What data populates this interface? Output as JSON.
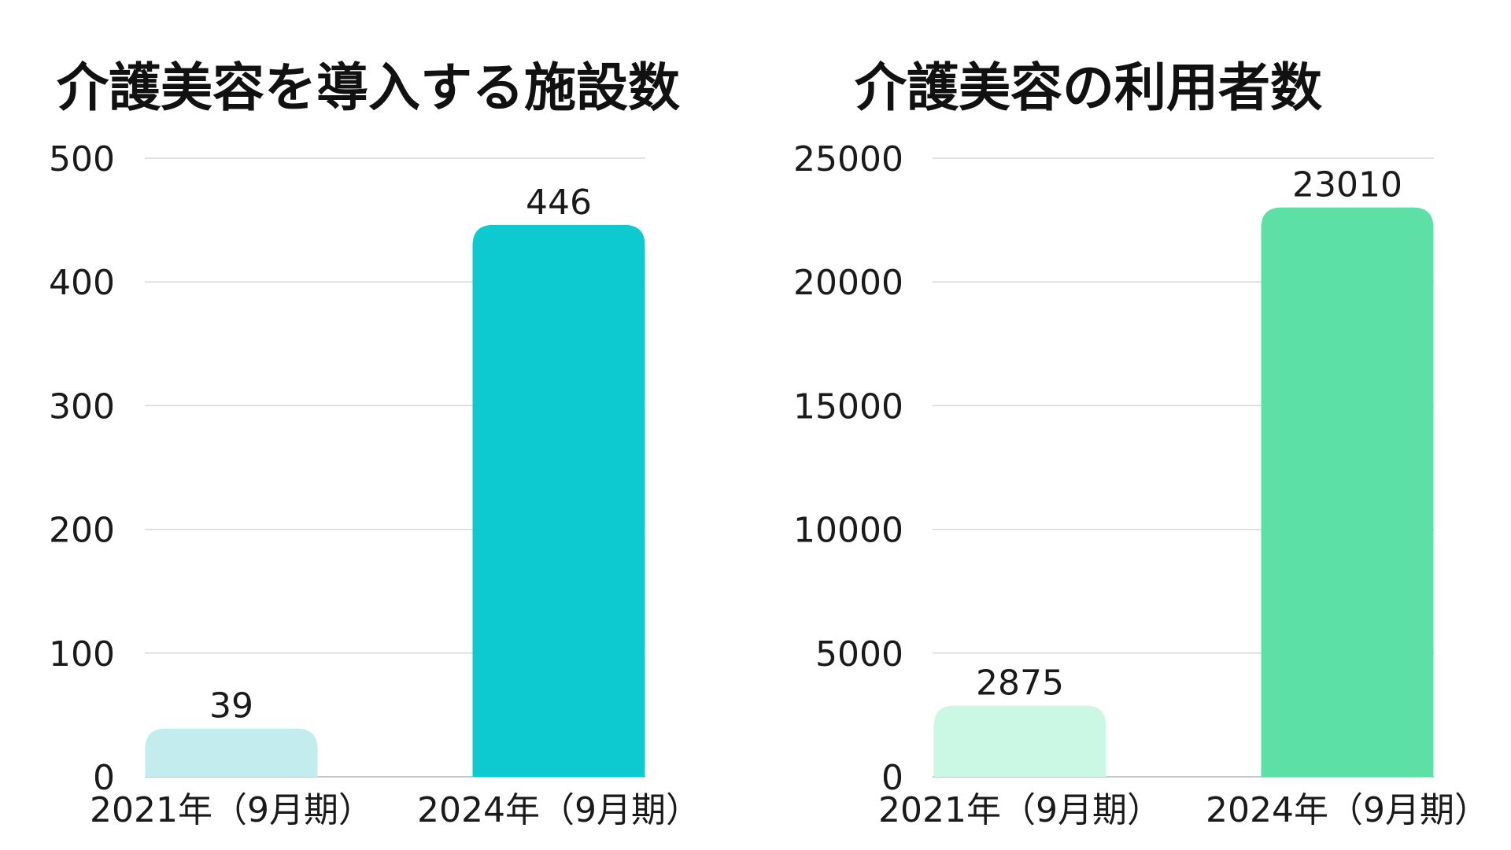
{
  "chart_data": [
    {
      "type": "bar",
      "title": "介護美容を導入する施設数",
      "categories": [
        "2021年（9月期）",
        "2024年（9月期）"
      ],
      "values": [
        39,
        446
      ],
      "ylim": [
        0,
        500
      ],
      "yticks": [
        0,
        100,
        200,
        300,
        400,
        500
      ],
      "grid": true,
      "colors": [
        "#c3ecee",
        "#0ccacf"
      ]
    },
    {
      "type": "bar",
      "title": "介護美容の利用者数",
      "categories": [
        "2021年（9月期）",
        "2024年（9月期）"
      ],
      "values": [
        2875,
        23010
      ],
      "ylim": [
        0,
        25000
      ],
      "yticks": [
        0,
        5000,
        10000,
        15000,
        20000,
        25000
      ],
      "grid": true,
      "colors": [
        "#caf8e4",
        "#5de0a6"
      ]
    }
  ]
}
